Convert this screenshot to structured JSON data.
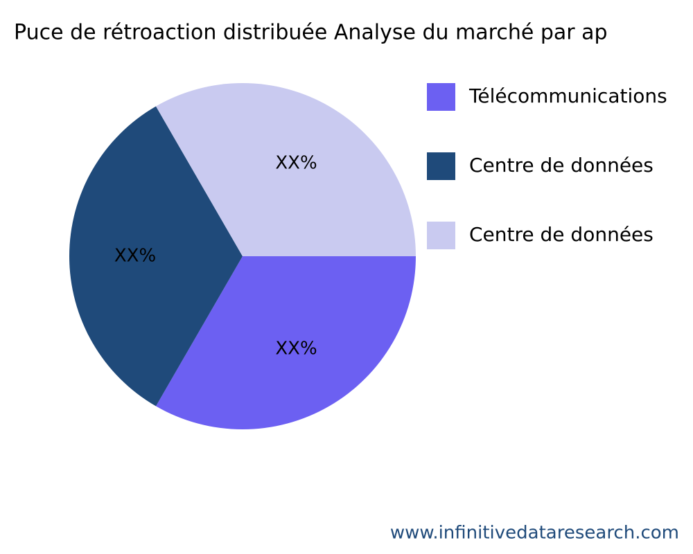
{
  "chart_data": {
    "type": "pie",
    "title": "Puce de rétroaction distribuée Analyse du marché par ap",
    "categories": [
      "Télécommunications",
      "Centre de données",
      "Centre de données"
    ],
    "values": [
      33.3,
      33.3,
      33.3
    ],
    "value_labels": [
      "XX%",
      "XX%",
      "XX%"
    ],
    "colors": [
      "#6c60f2",
      "#1f4a7a",
      "#c9caf0"
    ],
    "legend": "right",
    "source": "www.infinitivedataresearch.com"
  }
}
